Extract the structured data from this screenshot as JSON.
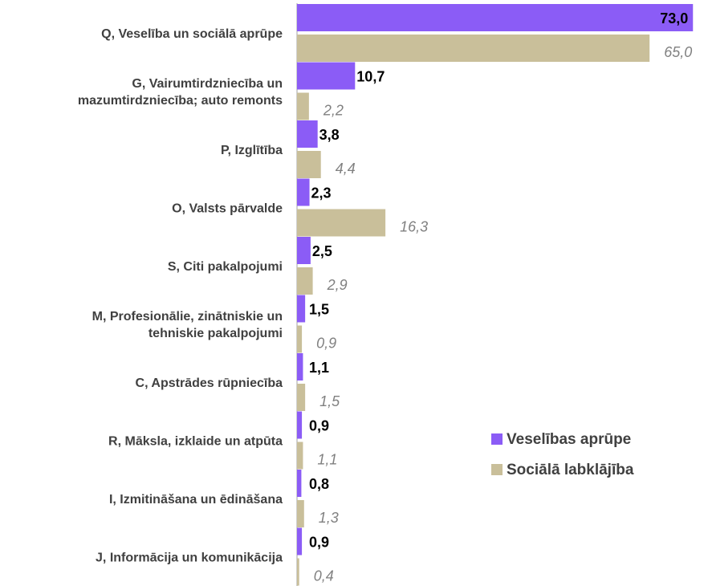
{
  "chart_data": {
    "type": "bar",
    "orientation": "horizontal",
    "categories": [
      "Q, Veselība un sociālā aprūpe",
      "G, Vairumtirdzniecība un\nmazumtirdzniecība; auto remonts",
      "P, Izglītība",
      "O, Valsts pārvalde",
      "S, Citi pakalpojumi",
      "M, Profesionālie, zinātniskie un\ntehniskie pakalpojumi",
      "C, Apstrādes rūpniecība",
      "R, Māksla, izklaide un atpūta",
      "I, Izmitināšana un ēdināšana",
      "J, Informācija un komunikācija"
    ],
    "series": [
      {
        "name": "Veselības aprūpe",
        "color": "#8b5cf6",
        "values": [
          73.0,
          10.7,
          3.8,
          2.3,
          2.5,
          1.5,
          1.1,
          0.9,
          0.8,
          0.9
        ],
        "value_labels": [
          "73,0",
          "10,7",
          "3,8",
          "2,3",
          "2,5",
          "1,5",
          "1,1",
          "0,9",
          "0,8",
          "0,9"
        ]
      },
      {
        "name": "Sociālā labklājība",
        "color": "#c9bf9a",
        "values": [
          65.0,
          2.2,
          4.4,
          16.3,
          2.9,
          0.9,
          1.5,
          1.1,
          1.3,
          0.4
        ],
        "value_labels": [
          "65,0",
          "2,2",
          "4,4",
          "16,3",
          "2,9",
          "0,9",
          "1,5",
          "1,1",
          "1,3",
          "0,4"
        ]
      }
    ],
    "xlim": [
      0,
      74
    ],
    "legend": "right"
  }
}
